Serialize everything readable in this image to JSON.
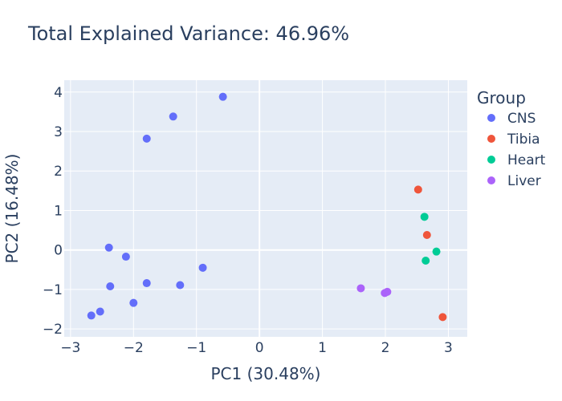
{
  "chart_data": {
    "type": "scatter",
    "title": "Total Explained Variance: 46.96%",
    "xlabel": "PC1 (30.48%)",
    "ylabel": "PC2 (16.48%)",
    "xlim": [
      -3.1,
      3.3
    ],
    "ylim": [
      -2.2,
      4.3
    ],
    "xticks": [
      -3,
      -2,
      -1,
      0,
      1,
      2,
      3
    ],
    "yticks": [
      -2,
      -1,
      0,
      1,
      2,
      3,
      4
    ],
    "xtick_labels": [
      "−3",
      "−2",
      "−1",
      "0",
      "1",
      "2",
      "3"
    ],
    "ytick_labels": [
      "−2",
      "−1",
      "0",
      "1",
      "2",
      "3",
      "4"
    ],
    "grid": true,
    "legend": {
      "title": "Group",
      "position": "right"
    },
    "series": [
      {
        "name": "CNS",
        "color": "#636efa",
        "points": [
          [
            -0.58,
            3.88
          ],
          [
            -1.37,
            3.38
          ],
          [
            -1.79,
            2.82
          ],
          [
            -2.39,
            0.06
          ],
          [
            -2.12,
            -0.17
          ],
          [
            -0.9,
            -0.45
          ],
          [
            -2.37,
            -0.92
          ],
          [
            -1.79,
            -0.84
          ],
          [
            -1.26,
            -0.89
          ],
          [
            -2.0,
            -1.34
          ],
          [
            -2.53,
            -1.56
          ],
          [
            -2.67,
            -1.66
          ]
        ]
      },
      {
        "name": "Tibia",
        "color": "#ef553b",
        "points": [
          [
            2.52,
            1.53
          ],
          [
            2.66,
            0.38
          ],
          [
            2.91,
            -1.7
          ]
        ]
      },
      {
        "name": "Heart",
        "color": "#00cc96",
        "points": [
          [
            2.62,
            0.84
          ],
          [
            2.81,
            -0.04
          ],
          [
            2.64,
            -0.27
          ]
        ]
      },
      {
        "name": "Liver",
        "color": "#ab63fa",
        "points": [
          [
            1.61,
            -0.97
          ],
          [
            2.03,
            -1.06
          ],
          [
            1.99,
            -1.09
          ]
        ]
      }
    ]
  }
}
